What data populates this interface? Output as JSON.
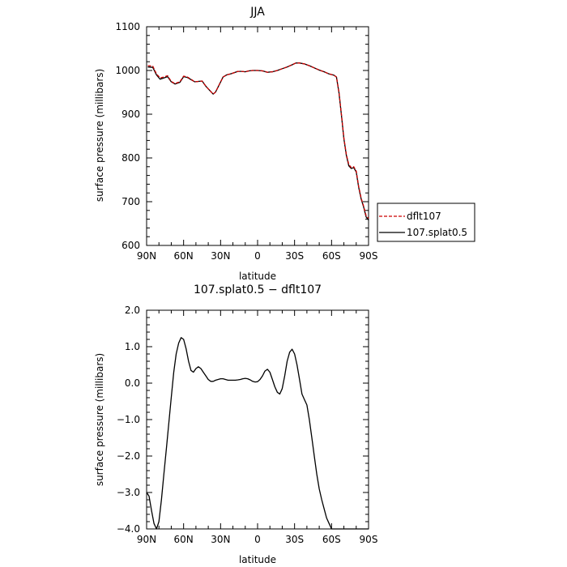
{
  "chart_data": [
    {
      "type": "line",
      "title": "JJA",
      "xlabel": "latitude",
      "ylabel": "surface pressure (millibars)",
      "xlim": [
        -90,
        90
      ],
      "ylim": [
        600,
        1100
      ],
      "xticks": [
        -90,
        -60,
        -30,
        0,
        30,
        60,
        90
      ],
      "xtick_labels": [
        "90N",
        "60N",
        "30N",
        "0",
        "30S",
        "60S",
        "90S"
      ],
      "yticks": [
        600,
        700,
        800,
        900,
        1000,
        1100
      ],
      "ytick_labels": [
        "600",
        "700",
        "800",
        "900",
        "1000",
        "1100"
      ],
      "grid": false,
      "legend_position": "right",
      "series": [
        {
          "name": "dflt107",
          "color": "#cc0000",
          "dash": "dashed",
          "x": [
            -89,
            -85,
            -82,
            -79,
            -76,
            -73,
            -70,
            -67,
            -63,
            -60,
            -57,
            -54,
            -51,
            -48,
            -45,
            -42,
            -39,
            -36,
            -34,
            -31,
            -28,
            -25,
            -22,
            -19,
            -16,
            -13,
            -10,
            -7,
            -4,
            0,
            4,
            8,
            12,
            16,
            20,
            24,
            28,
            31,
            34,
            38,
            42,
            46,
            50,
            54,
            58,
            62,
            64,
            66,
            68,
            70,
            72,
            74,
            76,
            78,
            80,
            82,
            84,
            86,
            88,
            90
          ],
          "y": [
            1011,
            1010,
            992,
            983,
            985,
            988,
            975,
            970,
            974,
            987,
            985,
            980,
            974,
            975,
            976,
            964,
            955,
            946,
            951,
            968,
            985,
            990,
            992,
            995,
            998,
            998,
            997,
            999,
            1000,
            1000,
            999,
            996,
            997,
            1000,
            1004,
            1008,
            1013,
            1017,
            1017,
            1015,
            1011,
            1006,
            1001,
            997,
            992,
            989,
            985,
            950,
            900,
            845,
            808,
            785,
            778,
            780,
            770,
            735,
            708,
            690,
            668,
            662
          ]
        },
        {
          "name": "107.splat0.5",
          "color": "#000000",
          "dash": "solid",
          "x": [
            -89,
            -85,
            -82,
            -79,
            -76,
            -73,
            -70,
            -67,
            -63,
            -60,
            -57,
            -54,
            -51,
            -48,
            -45,
            -42,
            -39,
            -36,
            -34,
            -31,
            -28,
            -25,
            -22,
            -19,
            -16,
            -13,
            -10,
            -7,
            -4,
            0,
            4,
            8,
            12,
            16,
            20,
            24,
            28,
            31,
            34,
            38,
            42,
            46,
            50,
            54,
            58,
            62,
            64,
            66,
            68,
            70,
            72,
            74,
            76,
            78,
            80,
            82,
            84,
            86,
            88,
            90
          ],
          "y": [
            1008,
            1007,
            990,
            980,
            983,
            986,
            974,
            969,
            973,
            986,
            984,
            979,
            974,
            975,
            976,
            964,
            955,
            946,
            951,
            968,
            985,
            990,
            992,
            995,
            998,
            998,
            997,
            999,
            1000,
            1000,
            999,
            996,
            997,
            1000,
            1004,
            1008,
            1013,
            1017,
            1017,
            1015,
            1011,
            1006,
            1001,
            997,
            992,
            989,
            985,
            949,
            898,
            843,
            806,
            782,
            776,
            778,
            768,
            733,
            706,
            688,
            665,
            658
          ]
        }
      ]
    },
    {
      "type": "line",
      "title": "107.splat0.5 − dflt107",
      "xlabel": "latitude",
      "ylabel": "surface pressure (millibars)",
      "xlim": [
        -90,
        90
      ],
      "ylim": [
        -4.0,
        2.0
      ],
      "xticks": [
        -90,
        -60,
        -30,
        0,
        30,
        60,
        90
      ],
      "xtick_labels": [
        "90N",
        "60N",
        "30N",
        "0",
        "30S",
        "60S",
        "90S"
      ],
      "yticks": [
        -4.0,
        -3.0,
        -2.0,
        -1.0,
        0.0,
        1.0,
        2.0
      ],
      "ytick_labels": [
        "−4.0",
        "−3.0",
        "−2.0",
        "−1.0",
        "0.0",
        "1.0",
        "2.0"
      ],
      "grid": false,
      "series": [
        {
          "color": "#000000",
          "dash": "solid",
          "x": [
            -90,
            -88,
            -86,
            -84,
            -82,
            -80,
            -78,
            -76,
            -74,
            -72,
            -70,
            -68,
            -66,
            -64,
            -62,
            -60,
            -58,
            -56,
            -54,
            -52,
            -50,
            -48,
            -46,
            -44,
            -42,
            -40,
            -38,
            -36,
            -34,
            -32,
            -30,
            -28,
            -26,
            -24,
            -22,
            -20,
            -18,
            -16,
            -14,
            -12,
            -10,
            -8,
            -6,
            -4,
            -2,
            0,
            2,
            4,
            6,
            8,
            10,
            12,
            14,
            16,
            18,
            20,
            22,
            24,
            26,
            28,
            30,
            32,
            34,
            36,
            38,
            40,
            42,
            44,
            46,
            48,
            50,
            52,
            54,
            56,
            58,
            60,
            62,
            64,
            66,
            68,
            70,
            72,
            74,
            76,
            78,
            80,
            82,
            84,
            86,
            88,
            90
          ],
          "y": [
            -3.0,
            -3.1,
            -3.5,
            -3.85,
            -4.0,
            -3.8,
            -3.2,
            -2.5,
            -1.8,
            -1.1,
            -0.4,
            0.3,
            0.8,
            1.1,
            1.25,
            1.2,
            0.95,
            0.6,
            0.35,
            0.3,
            0.4,
            0.45,
            0.4,
            0.3,
            0.2,
            0.1,
            0.05,
            0.05,
            0.08,
            0.1,
            0.12,
            0.12,
            0.1,
            0.08,
            0.08,
            0.08,
            0.08,
            0.09,
            0.1,
            0.12,
            0.13,
            0.12,
            0.09,
            0.05,
            0.03,
            0.04,
            0.1,
            0.2,
            0.33,
            0.38,
            0.3,
            0.1,
            -0.1,
            -0.25,
            -0.3,
            -0.15,
            0.2,
            0.6,
            0.85,
            0.93,
            0.8,
            0.5,
            0.1,
            -0.3,
            -0.45,
            -0.6,
            -1.0,
            -1.5,
            -2.0,
            -2.5,
            -2.9,
            -3.2,
            -3.45,
            -3.7,
            -3.85,
            -4.0,
            -4.0,
            -4.0,
            -4.0,
            -4.0,
            -4.0,
            -4.0,
            -4.0,
            -4.0,
            -4.0,
            -4.0,
            -4.0,
            -4.0,
            -4.0,
            -4.0,
            -4.0
          ]
        }
      ]
    }
  ]
}
